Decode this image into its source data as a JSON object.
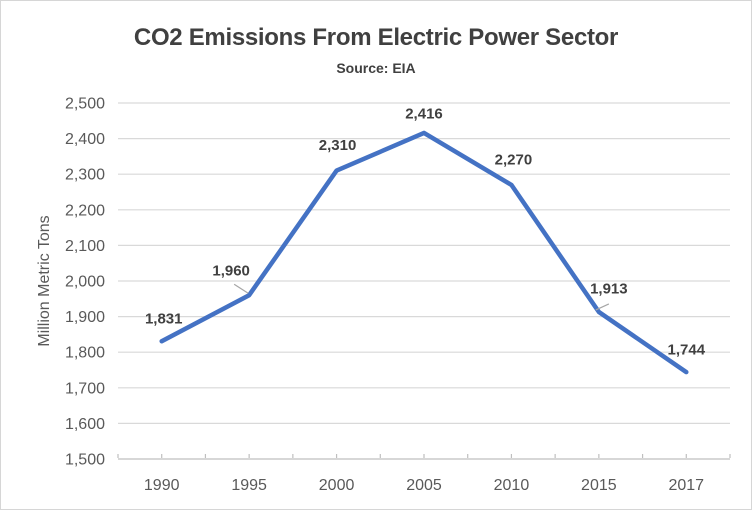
{
  "chart_data": {
    "type": "line",
    "title": "CO2 Emissions From Electric Power Sector",
    "subtitle": "Source: EIA",
    "ylabel": "Million Metric Tons",
    "xlabel": "",
    "categories": [
      "1990",
      "1995",
      "2000",
      "2005",
      "2010",
      "2015",
      "2017"
    ],
    "series": [
      {
        "name": "CO2 Emissions",
        "values": [
          1831,
          1960,
          2310,
          2416,
          2270,
          1913,
          1744
        ]
      }
    ],
    "data_labels": [
      "1,831",
      "1,960",
      "2,310",
      "2,416",
      "2,270",
      "1,913",
      "1,744"
    ],
    "ylim": [
      1500,
      2500
    ],
    "ytick_step": 100,
    "ytick_labels": [
      "1,500",
      "1,600",
      "1,700",
      "1,800",
      "1,900",
      "2,000",
      "2,100",
      "2,200",
      "2,300",
      "2,400",
      "2,500"
    ],
    "grid": true,
    "legend": "none",
    "colors": {
      "line": "#4472C4",
      "gridline": "#D9D9D9",
      "axis_line": "#BFBFBF",
      "tick": "#BFBFBF",
      "axis_label": "#595959",
      "data_label": "#404040",
      "title": "#404040",
      "leader_line": "#A6A6A6"
    }
  }
}
